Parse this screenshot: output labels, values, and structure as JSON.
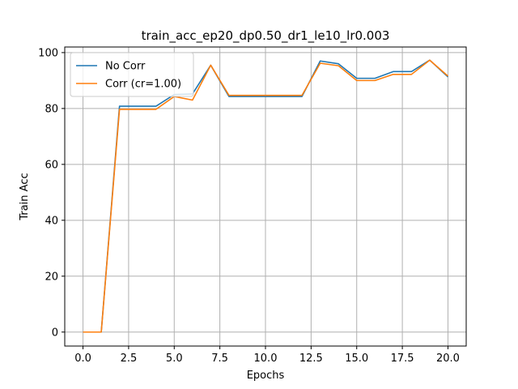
{
  "chart_data": {
    "type": "line",
    "title": "train_acc_ep20_dp0.50_dr1_le10_lr0.003",
    "xlabel": "Epochs",
    "ylabel": "Train Acc",
    "xlim": [
      -1,
      21
    ],
    "ylim": [
      -5,
      102
    ],
    "xticks": [
      0.0,
      2.5,
      5.0,
      7.5,
      10.0,
      12.5,
      15.0,
      17.5,
      20.0
    ],
    "xtick_labels": [
      "0.0",
      "2.5",
      "5.0",
      "7.5",
      "10.0",
      "12.5",
      "15.0",
      "17.5",
      "20.0"
    ],
    "yticks": [
      0,
      20,
      40,
      60,
      80,
      100
    ],
    "ytick_labels": [
      "0",
      "20",
      "40",
      "60",
      "80",
      "100"
    ],
    "grid": true,
    "legend_position": "top-left",
    "x": [
      0,
      1,
      2,
      3,
      4,
      5,
      6,
      7,
      8,
      9,
      10,
      11,
      12,
      13,
      14,
      15,
      16,
      17,
      18,
      19,
      20
    ],
    "series": [
      {
        "name": "No Corr",
        "color": "#1f77b4",
        "values": [
          0,
          0,
          80.8,
          80.8,
          80.8,
          85.0,
          85.2,
          95.5,
          84.3,
          84.3,
          84.3,
          84.3,
          84.3,
          97.0,
          96.0,
          90.8,
          90.8,
          93.2,
          93.2,
          97.3,
          91.3
        ]
      },
      {
        "name": "Corr (cr=1.00)",
        "color": "#ff7f0e",
        "values": [
          0,
          0,
          79.7,
          79.7,
          79.7,
          84.3,
          83.0,
          95.5,
          84.7,
          84.7,
          84.7,
          84.7,
          84.7,
          96.2,
          95.3,
          90.0,
          90.0,
          92.2,
          92.2,
          97.3,
          91.6
        ]
      }
    ]
  }
}
